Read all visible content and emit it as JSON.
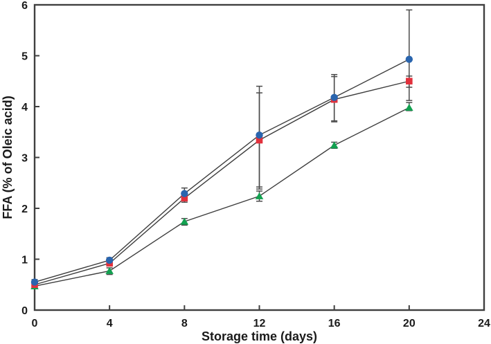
{
  "figure": {
    "background_color": "#ffffff",
    "frame_color": "#3f3f3f",
    "text_color": "#1a1a1a"
  },
  "chart_data": {
    "type": "line",
    "title": "",
    "xlabel": "Storage time (days)",
    "ylabel": "FFA (% of Oleic acid)",
    "x": [
      0,
      4,
      8,
      12,
      16,
      20
    ],
    "xlim": [
      0,
      24
    ],
    "ylim": [
      0,
      6
    ],
    "xticks": [
      0,
      4,
      8,
      12,
      16,
      20,
      24
    ],
    "yticks": [
      0,
      1,
      2,
      3,
      4,
      5,
      6
    ],
    "grid": false,
    "legend": "none",
    "line_color": "#3d3d3d",
    "error_bar_color": "#4a4a4a",
    "series": [
      {
        "name": "green-triangle-series",
        "marker": "triangle",
        "color": "#12a150",
        "values": [
          0.47,
          0.77,
          1.74,
          2.24,
          3.24,
          3.98
        ],
        "err_up": [
          0.05,
          0.06,
          0.06,
          0.1,
          0.06,
          0.1
        ],
        "err_down": [
          0.05,
          0.07,
          0.07,
          0.1,
          0.06,
          0.06
        ]
      },
      {
        "name": "red-square-series",
        "marker": "square",
        "color": "#e2313c",
        "values": [
          0.5,
          0.92,
          2.2,
          3.34,
          4.14,
          4.5
        ],
        "err_up": [
          0.05,
          0.05,
          0.1,
          0.93,
          0.45,
          0.1
        ],
        "err_down": [
          0.05,
          0.05,
          0.08,
          0.96,
          0.44,
          0.12
        ]
      },
      {
        "name": "blue-circle-series",
        "marker": "circle",
        "color": "#2a65ae",
        "values": [
          0.55,
          0.98,
          2.29,
          3.44,
          4.18,
          4.93
        ],
        "err_up": [
          0.05,
          0.05,
          0.11,
          0.96,
          0.45,
          0.97
        ],
        "err_down": [
          0.05,
          0.05,
          0.12,
          1.02,
          0.46,
          0.81
        ]
      }
    ]
  }
}
